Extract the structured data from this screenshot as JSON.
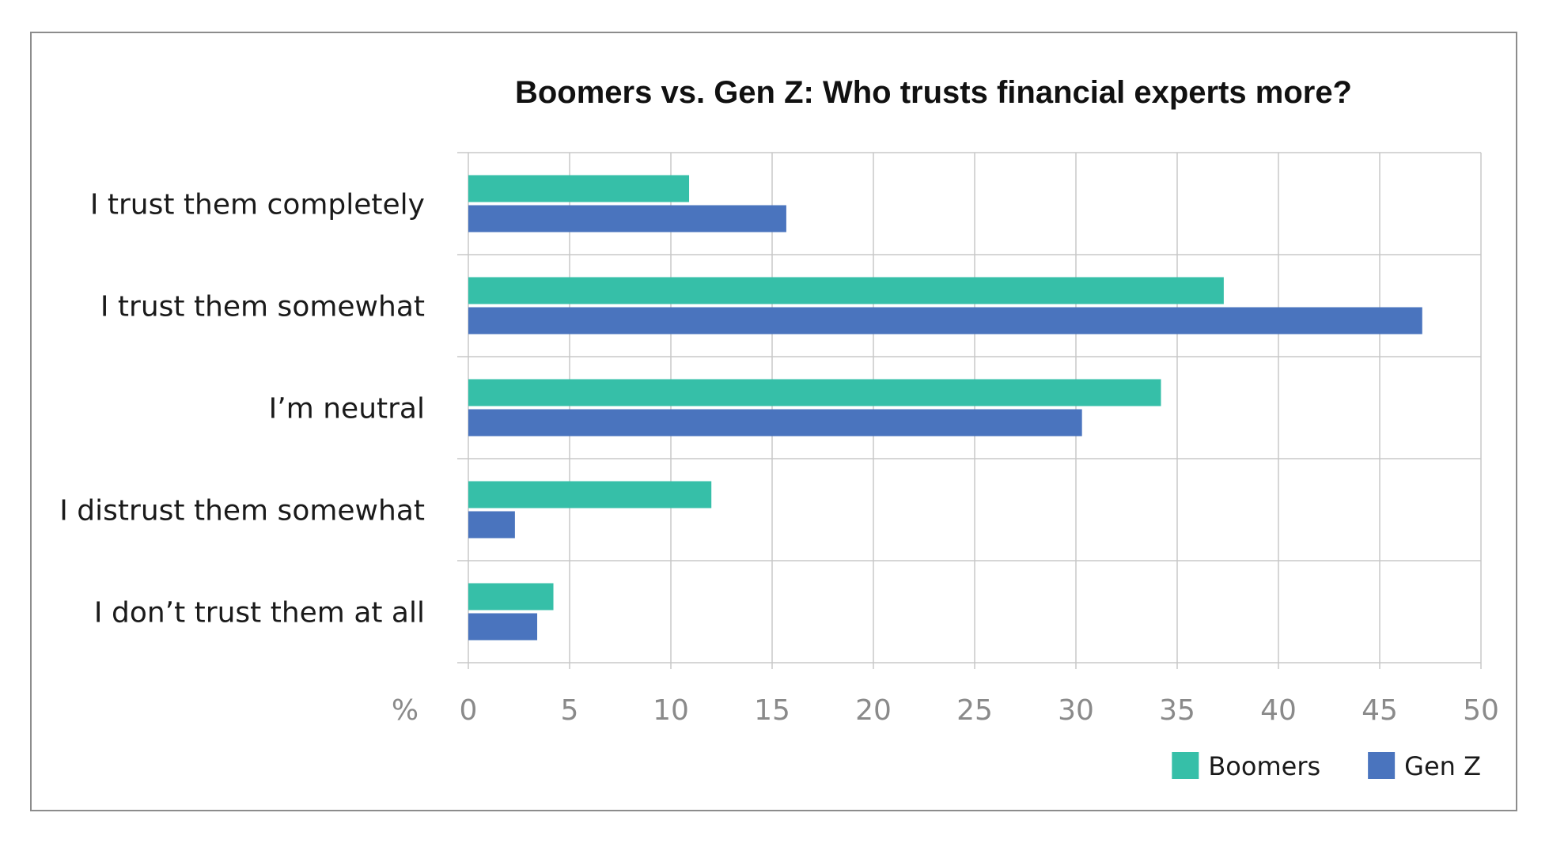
{
  "chart_data": {
    "type": "bar",
    "orientation": "horizontal",
    "title": "Boomers vs. Gen Z: Who trusts financial experts more?",
    "xlabel": "%",
    "ylabel": "",
    "categories": [
      "I trust them completely",
      "I trust them somewhat",
      "I’m neutral",
      "I distrust them somewhat",
      "I don’t trust them at all"
    ],
    "series": [
      {
        "name": "Boomers",
        "color": "#36bfa8",
        "values": [
          10.9,
          37.3,
          34.2,
          12.0,
          4.2
        ]
      },
      {
        "name": "Gen Z",
        "color": "#4a74be",
        "values": [
          15.7,
          47.1,
          30.3,
          2.3,
          3.4
        ]
      }
    ],
    "xlim": [
      0,
      50
    ],
    "xticks": [
      "0",
      "5",
      "10",
      "15",
      "20",
      "25",
      "30",
      "35",
      "40",
      "45",
      "50"
    ],
    "grid": true,
    "legend_position": "bottom-right"
  }
}
